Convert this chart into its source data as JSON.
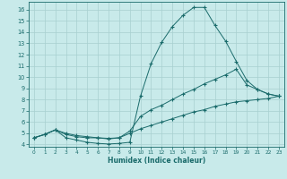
{
  "xlabel": "Humidex (Indice chaleur)",
  "bg_color": "#c8eaea",
  "grid_color": "#a8d0d0",
  "line_color": "#1a6b6b",
  "xlim": [
    -0.5,
    23.5
  ],
  "ylim": [
    3.8,
    16.7
  ],
  "xticks": [
    0,
    1,
    2,
    3,
    4,
    5,
    6,
    7,
    8,
    9,
    10,
    11,
    12,
    13,
    14,
    15,
    16,
    17,
    18,
    19,
    20,
    21,
    22,
    23
  ],
  "yticks": [
    4,
    5,
    6,
    7,
    8,
    9,
    10,
    11,
    12,
    13,
    14,
    15,
    16
  ],
  "line1_x": [
    0,
    1,
    2,
    3,
    4,
    5,
    6,
    7,
    8,
    9,
    10,
    11,
    12,
    13,
    14,
    15,
    16,
    17,
    18,
    19,
    20,
    21,
    22,
    23
  ],
  "line1_y": [
    4.6,
    4.9,
    5.3,
    4.6,
    4.4,
    4.2,
    4.1,
    4.05,
    4.1,
    4.2,
    8.3,
    11.2,
    13.1,
    14.5,
    15.5,
    16.2,
    16.2,
    14.6,
    13.2,
    11.4,
    9.7,
    8.9,
    8.5,
    8.3
  ],
  "line2_x": [
    0,
    1,
    2,
    3,
    4,
    5,
    6,
    7,
    8,
    9,
    10,
    11,
    12,
    13,
    14,
    15,
    16,
    17,
    18,
    19,
    20,
    21,
    22,
    23
  ],
  "line2_y": [
    4.6,
    4.9,
    5.3,
    4.9,
    4.7,
    4.6,
    4.6,
    4.5,
    4.6,
    5.2,
    6.5,
    7.1,
    7.5,
    8.0,
    8.5,
    8.9,
    9.4,
    9.8,
    10.2,
    10.7,
    9.3,
    8.9,
    8.5,
    8.3
  ],
  "line3_x": [
    0,
    1,
    2,
    3,
    4,
    5,
    6,
    7,
    8,
    9,
    10,
    11,
    12,
    13,
    14,
    15,
    16,
    17,
    18,
    19,
    20,
    21,
    22,
    23
  ],
  "line3_y": [
    4.6,
    4.9,
    5.3,
    5.0,
    4.8,
    4.7,
    4.6,
    4.55,
    4.6,
    5.0,
    5.4,
    5.7,
    6.0,
    6.3,
    6.6,
    6.9,
    7.1,
    7.4,
    7.6,
    7.8,
    7.9,
    8.0,
    8.1,
    8.3
  ]
}
